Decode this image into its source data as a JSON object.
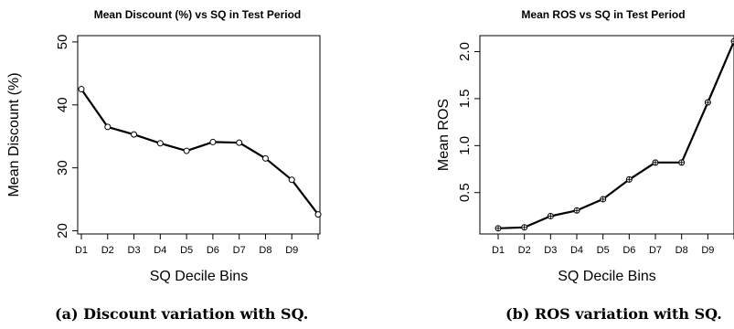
{
  "chart_data": [
    {
      "type": "line",
      "title": "Mean Discount (%) vs SQ in Test Period",
      "xlabel": "SQ Decile Bins",
      "ylabel": "Mean Discount (%)",
      "categories": [
        "D1",
        "D2",
        "D3",
        "D4",
        "D5",
        "D6",
        "D7",
        "D8",
        "D9",
        ""
      ],
      "values": [
        42.5,
        36.5,
        35.3,
        33.9,
        32.7,
        34.1,
        34.0,
        31.5,
        28.1,
        22.6
      ],
      "yticks": [
        20,
        30,
        40,
        50
      ],
      "ylim": [
        19.5,
        51
      ],
      "grid": false,
      "marker": "circle"
    },
    {
      "type": "line",
      "title": "Mean ROS vs SQ in Test Period",
      "xlabel": "SQ Decile Bins",
      "ylabel": "Mean ROS",
      "categories": [
        "D1",
        "D2",
        "D3",
        "D4",
        "D5",
        "D6",
        "D7",
        "D8",
        "D9",
        ""
      ],
      "values": [
        0.12,
        0.13,
        0.25,
        0.31,
        0.43,
        0.64,
        0.82,
        0.82,
        1.46,
        2.11
      ],
      "yticks": [
        0.5,
        1.0,
        1.5,
        2.0
      ],
      "ytick_labels": [
        "0.5",
        "1.0",
        "1.5",
        "2.0"
      ],
      "ylim": [
        0.06,
        2.17
      ],
      "grid": false,
      "marker": "circle-cross"
    }
  ],
  "captions": {
    "a": "(a) Discount variation with SQ.",
    "b": "(b) ROS variation with SQ."
  }
}
